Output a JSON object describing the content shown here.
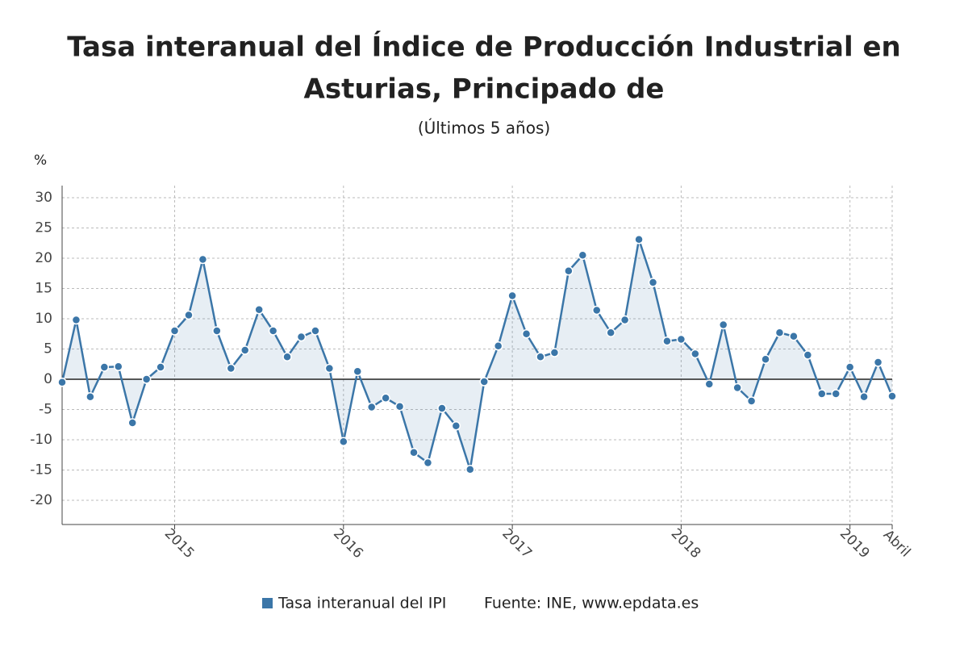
{
  "chart_data": {
    "type": "line",
    "title": "Tasa interanual del Índice de Producción Industrial en",
    "title_line2": "Asturias, Principado de",
    "subtitle": "(Últimos 5 años)",
    "y_label": "%",
    "source": "Fuente: INE, www.epdata.es",
    "categories": [
      null,
      null,
      null,
      null,
      null,
      null,
      null,
      null,
      "2015",
      null,
      null,
      null,
      null,
      null,
      null,
      null,
      null,
      null,
      null,
      null,
      "2016",
      null,
      null,
      null,
      null,
      null,
      null,
      null,
      null,
      null,
      null,
      null,
      "2017",
      null,
      null,
      null,
      null,
      null,
      null,
      null,
      null,
      null,
      null,
      null,
      "2018",
      null,
      null,
      null,
      null,
      null,
      null,
      null,
      null,
      null,
      null,
      null,
      "2019",
      null,
      null,
      "Abril"
    ],
    "series": [
      {
        "name": "Tasa interanual del IPI",
        "color": "#3b76a8",
        "values": [
          -0.5,
          9.8,
          -2.9,
          2.0,
          2.1,
          -7.2,
          0.0,
          2.0,
          8.0,
          10.6,
          19.8,
          8.0,
          1.8,
          4.8,
          11.5,
          8.0,
          3.7,
          7.0,
          8.0,
          1.8,
          -10.3,
          1.3,
          -4.6,
          -3.1,
          -4.5,
          -12.1,
          -13.8,
          -4.8,
          -7.7,
          -14.9,
          -0.4,
          5.5,
          13.8,
          7.5,
          3.7,
          4.4,
          17.9,
          20.5,
          11.4,
          7.7,
          9.8,
          23.1,
          16.0,
          6.3,
          6.6,
          4.2,
          -0.8,
          9.0,
          -1.4,
          -3.6,
          3.3,
          7.7,
          7.1,
          4.0,
          -2.4,
          -2.4,
          2.0,
          -2.9,
          2.8,
          -2.8
        ]
      }
    ],
    "ylim": [
      -24,
      32
    ],
    "yticks": [
      -20,
      -15,
      -10,
      -5,
      0,
      5,
      10,
      15,
      20,
      25,
      30
    ],
    "grid": true
  }
}
